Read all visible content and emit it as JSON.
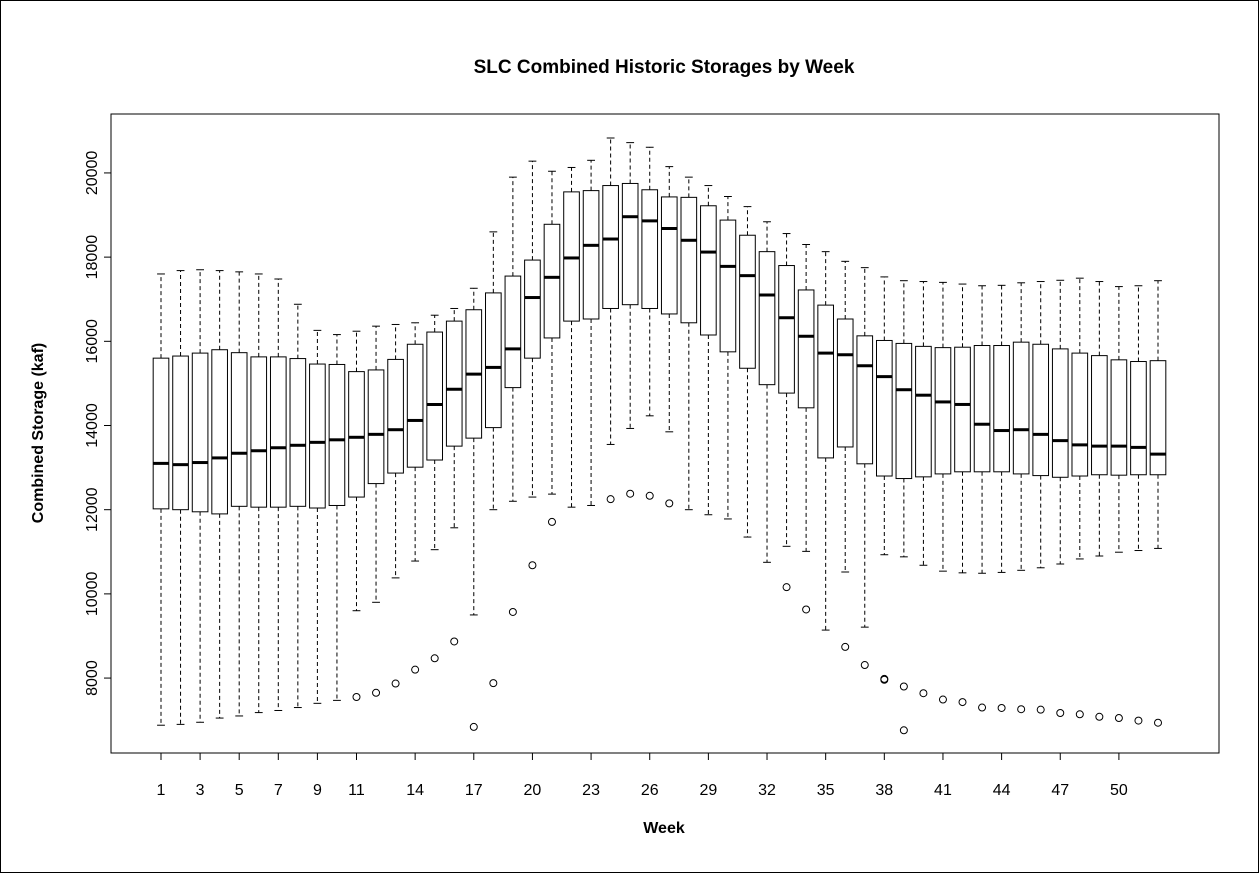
{
  "chart_data": {
    "type": "boxplot",
    "title": "SLC Combined Historic Storages by Week",
    "x_label": "Week",
    "y_label": "Combined Storage (kaf)",
    "categories": [
      "1",
      null,
      "3",
      null,
      "5",
      null,
      "7",
      null,
      "9",
      null,
      "11",
      null,
      null,
      "14",
      null,
      null,
      "17",
      null,
      null,
      "20",
      null,
      null,
      "23",
      null,
      null,
      "26",
      null,
      null,
      "29",
      null,
      null,
      "32",
      null,
      null,
      "35",
      null,
      null,
      "38",
      null,
      null,
      "41",
      null,
      null,
      "44",
      null,
      null,
      "47",
      null,
      null,
      "50",
      null,
      null
    ],
    "ylim": [
      6220,
      21400
    ],
    "yticks": [
      8000,
      10000,
      12000,
      14000,
      16000,
      18000,
      20000
    ],
    "color": "#000000",
    "boxes": [
      {
        "low": 6880,
        "q1": 12020,
        "median": 13100,
        "q3": 15600,
        "high": 17600,
        "outliers": []
      },
      {
        "low": 6900,
        "q1": 12000,
        "median": 13070,
        "q3": 15650,
        "high": 17680,
        "outliers": []
      },
      {
        "low": 6950,
        "q1": 11950,
        "median": 13120,
        "q3": 15720,
        "high": 17700,
        "outliers": []
      },
      {
        "low": 7050,
        "q1": 11900,
        "median": 13230,
        "q3": 15800,
        "high": 17680,
        "outliers": []
      },
      {
        "low": 7100,
        "q1": 12080,
        "median": 13340,
        "q3": 15730,
        "high": 17650,
        "outliers": []
      },
      {
        "low": 7180,
        "q1": 12060,
        "median": 13400,
        "q3": 15630,
        "high": 17600,
        "outliers": []
      },
      {
        "low": 7230,
        "q1": 12060,
        "median": 13470,
        "q3": 15630,
        "high": 17480,
        "outliers": []
      },
      {
        "low": 7300,
        "q1": 12080,
        "median": 13530,
        "q3": 15590,
        "high": 16880,
        "outliers": []
      },
      {
        "low": 7400,
        "q1": 12040,
        "median": 13600,
        "q3": 15460,
        "high": 16260,
        "outliers": []
      },
      {
        "low": 7470,
        "q1": 12100,
        "median": 13660,
        "q3": 15450,
        "high": 16160,
        "outliers": []
      },
      {
        "low": 9600,
        "q1": 12300,
        "median": 13720,
        "q3": 15280,
        "high": 16240,
        "outliers": [
          7550
        ]
      },
      {
        "low": 9800,
        "q1": 12620,
        "median": 13790,
        "q3": 15320,
        "high": 16360,
        "outliers": [
          7650
        ]
      },
      {
        "low": 10380,
        "q1": 12870,
        "median": 13900,
        "q3": 15570,
        "high": 16400,
        "outliers": [
          7870
        ]
      },
      {
        "low": 10780,
        "q1": 13010,
        "median": 14120,
        "q3": 15930,
        "high": 16440,
        "outliers": [
          8200
        ]
      },
      {
        "low": 11050,
        "q1": 13180,
        "median": 14500,
        "q3": 16220,
        "high": 16620,
        "outliers": [
          8470
        ]
      },
      {
        "low": 11570,
        "q1": 13510,
        "median": 14860,
        "q3": 16480,
        "high": 16780,
        "outliers": [
          8870
        ]
      },
      {
        "low": 9500,
        "q1": 13700,
        "median": 15220,
        "q3": 16750,
        "high": 17260,
        "outliers": [
          6840
        ]
      },
      {
        "low": 12000,
        "q1": 13950,
        "median": 15380,
        "q3": 17150,
        "high": 18600,
        "outliers": [
          7880
        ]
      },
      {
        "low": 12200,
        "q1": 14900,
        "median": 15820,
        "q3": 17550,
        "high": 19900,
        "outliers": [
          9570
        ]
      },
      {
        "low": 12300,
        "q1": 15600,
        "median": 17040,
        "q3": 17930,
        "high": 20280,
        "outliers": [
          10680
        ]
      },
      {
        "low": 12370,
        "q1": 16080,
        "median": 17520,
        "q3": 18780,
        "high": 20040,
        "outliers": [
          11710
        ]
      },
      {
        "low": 12060,
        "q1": 16480,
        "median": 17980,
        "q3": 19550,
        "high": 20130,
        "outliers": []
      },
      {
        "low": 12100,
        "q1": 16530,
        "median": 18280,
        "q3": 19580,
        "high": 20300,
        "outliers": []
      },
      {
        "low": 13550,
        "q1": 16780,
        "median": 18430,
        "q3": 19700,
        "high": 20830,
        "outliers": [
          12250
        ]
      },
      {
        "low": 13930,
        "q1": 16870,
        "median": 18960,
        "q3": 19750,
        "high": 20720,
        "outliers": [
          12380
        ]
      },
      {
        "low": 14230,
        "q1": 16780,
        "median": 18860,
        "q3": 19600,
        "high": 20610,
        "outliers": [
          12330
        ]
      },
      {
        "low": 13850,
        "q1": 16650,
        "median": 18680,
        "q3": 19430,
        "high": 20150,
        "outliers": [
          12150
        ]
      },
      {
        "low": 12000,
        "q1": 16440,
        "median": 18400,
        "q3": 19420,
        "high": 19900,
        "outliers": []
      },
      {
        "low": 11880,
        "q1": 16150,
        "median": 18120,
        "q3": 19220,
        "high": 19700,
        "outliers": []
      },
      {
        "low": 11780,
        "q1": 15750,
        "median": 17780,
        "q3": 18880,
        "high": 19440,
        "outliers": []
      },
      {
        "low": 11350,
        "q1": 15360,
        "median": 17560,
        "q3": 18520,
        "high": 19200,
        "outliers": []
      },
      {
        "low": 10750,
        "q1": 14970,
        "median": 17100,
        "q3": 18130,
        "high": 18840,
        "outliers": []
      },
      {
        "low": 11130,
        "q1": 14770,
        "median": 16560,
        "q3": 17800,
        "high": 18560,
        "outliers": [
          10160
        ]
      },
      {
        "low": 11010,
        "q1": 14420,
        "median": 16120,
        "q3": 17220,
        "high": 18300,
        "outliers": [
          9630
        ]
      },
      {
        "low": 9140,
        "q1": 13230,
        "median": 15720,
        "q3": 16860,
        "high": 18130,
        "outliers": []
      },
      {
        "low": 10520,
        "q1": 13490,
        "median": 15680,
        "q3": 16530,
        "high": 17900,
        "outliers": [
          8740
        ]
      },
      {
        "low": 9210,
        "q1": 13090,
        "median": 15420,
        "q3": 16130,
        "high": 17750,
        "outliers": [
          8310
        ]
      },
      {
        "low": 10930,
        "q1": 12800,
        "median": 15160,
        "q3": 16020,
        "high": 17530,
        "outliers": [
          7980,
          7960
        ]
      },
      {
        "low": 10880,
        "q1": 12740,
        "median": 14850,
        "q3": 15950,
        "high": 17440,
        "outliers": [
          7800,
          6760
        ]
      },
      {
        "low": 10680,
        "q1": 12780,
        "median": 14720,
        "q3": 15880,
        "high": 17420,
        "outliers": [
          7640
        ]
      },
      {
        "low": 10540,
        "q1": 12850,
        "median": 14560,
        "q3": 15850,
        "high": 17400,
        "outliers": [
          7490
        ]
      },
      {
        "low": 10500,
        "q1": 12900,
        "median": 14500,
        "q3": 15860,
        "high": 17360,
        "outliers": [
          7430
        ]
      },
      {
        "low": 10490,
        "q1": 12900,
        "median": 14030,
        "q3": 15900,
        "high": 17320,
        "outliers": [
          7300
        ]
      },
      {
        "low": 10510,
        "q1": 12900,
        "median": 13880,
        "q3": 15900,
        "high": 17330,
        "outliers": [
          7290
        ]
      },
      {
        "low": 10560,
        "q1": 12850,
        "median": 13900,
        "q3": 15980,
        "high": 17390,
        "outliers": [
          7260
        ]
      },
      {
        "low": 10620,
        "q1": 12810,
        "median": 13790,
        "q3": 15930,
        "high": 17420,
        "outliers": [
          7250
        ]
      },
      {
        "low": 10710,
        "q1": 12770,
        "median": 13640,
        "q3": 15820,
        "high": 17450,
        "outliers": [
          7170
        ]
      },
      {
        "low": 10830,
        "q1": 12800,
        "median": 13540,
        "q3": 15720,
        "high": 17500,
        "outliers": [
          7140
        ]
      },
      {
        "low": 10900,
        "q1": 12830,
        "median": 13510,
        "q3": 15660,
        "high": 17420,
        "outliers": [
          7080
        ]
      },
      {
        "low": 10990,
        "q1": 12820,
        "median": 13510,
        "q3": 15560,
        "high": 17300,
        "outliers": [
          7050
        ]
      },
      {
        "low": 11030,
        "q1": 12830,
        "median": 13480,
        "q3": 15520,
        "high": 17320,
        "outliers": [
          6990
        ]
      },
      {
        "low": 11080,
        "q1": 12830,
        "median": 13320,
        "q3": 15540,
        "high": 17440,
        "outliers": [
          6940
        ]
      }
    ]
  }
}
